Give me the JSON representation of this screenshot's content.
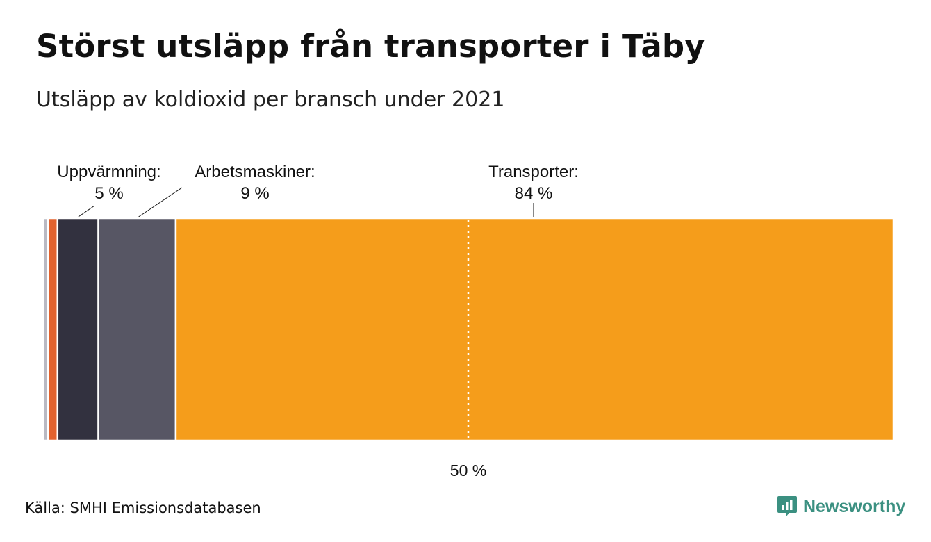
{
  "title": "Störst utsläpp från transporter i Täby",
  "subtitle": "Utsläpp av koldioxid per bransch under 2021",
  "source": "Källa: SMHI Emissionsdatabasen",
  "brand": {
    "name": "Newsworthy",
    "color": "#3b9081",
    "icon": "newsworthy-logo-icon"
  },
  "chart_data": {
    "type": "bar",
    "orientation": "horizontal-stacked-100",
    "unit": "%",
    "xlim": [
      0,
      100
    ],
    "grid": false,
    "legend": "none",
    "segments": [
      {
        "value": 0.6,
        "color": "#b9b9c3"
      },
      {
        "value": 1.1,
        "color": "#e2622e"
      },
      {
        "value": 4.8,
        "color": "#32313f"
      },
      {
        "value": 9.1,
        "color": "#575664"
      },
      {
        "value": 84.4,
        "color": "#f59d1b"
      }
    ],
    "annotations": [
      {
        "segment": 2,
        "label": "Uppvärmning:",
        "value_label": "5 %"
      },
      {
        "segment": 3,
        "label": "Arbetsmaskiner:",
        "value_label": "9 %"
      },
      {
        "segment": 4,
        "label": "Transporter:",
        "value_label": "84 %"
      }
    ],
    "reference_line": {
      "value": 50,
      "label": "50 %",
      "style": "dotted",
      "color": "#ffffff"
    }
  }
}
